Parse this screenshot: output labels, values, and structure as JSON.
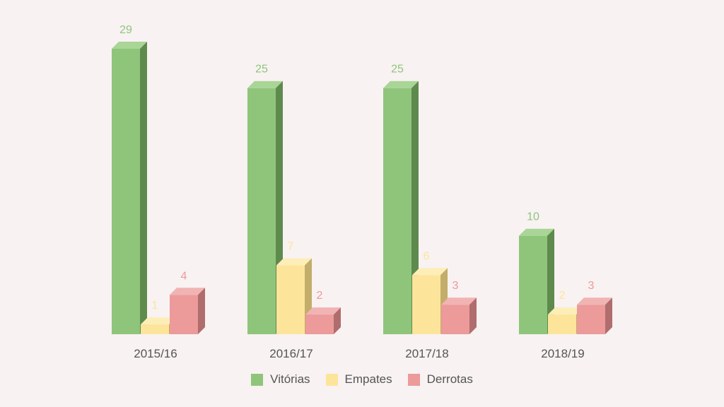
{
  "chart_data": {
    "type": "bar",
    "categories": [
      "2015/16",
      "2016/17",
      "2017/18",
      "2018/19"
    ],
    "series": [
      {
        "name": "Vitórias",
        "values": [
          29,
          25,
          25,
          10
        ],
        "color": "#8fc57b",
        "side_color": "#5e8a4e",
        "top_color": "#a9d596",
        "label_color": "#8fc57b"
      },
      {
        "name": "Empates",
        "values": [
          1,
          7,
          6,
          2
        ],
        "color": "#fde49b",
        "side_color": "#c3ad6a",
        "top_color": "#fdeeb8",
        "label_color": "#fde49b"
      },
      {
        "name": "Derrotas",
        "values": [
          4,
          2,
          3,
          3
        ],
        "color": "#ec9a9a",
        "side_color": "#b06d6d",
        "top_color": "#f2b3b3",
        "label_color": "#ec9a9a"
      }
    ],
    "ylim": [
      0,
      29
    ],
    "grid": false,
    "legend_position": "bottom-center",
    "style": "3d-bar",
    "tick_label_color": "#555555"
  }
}
